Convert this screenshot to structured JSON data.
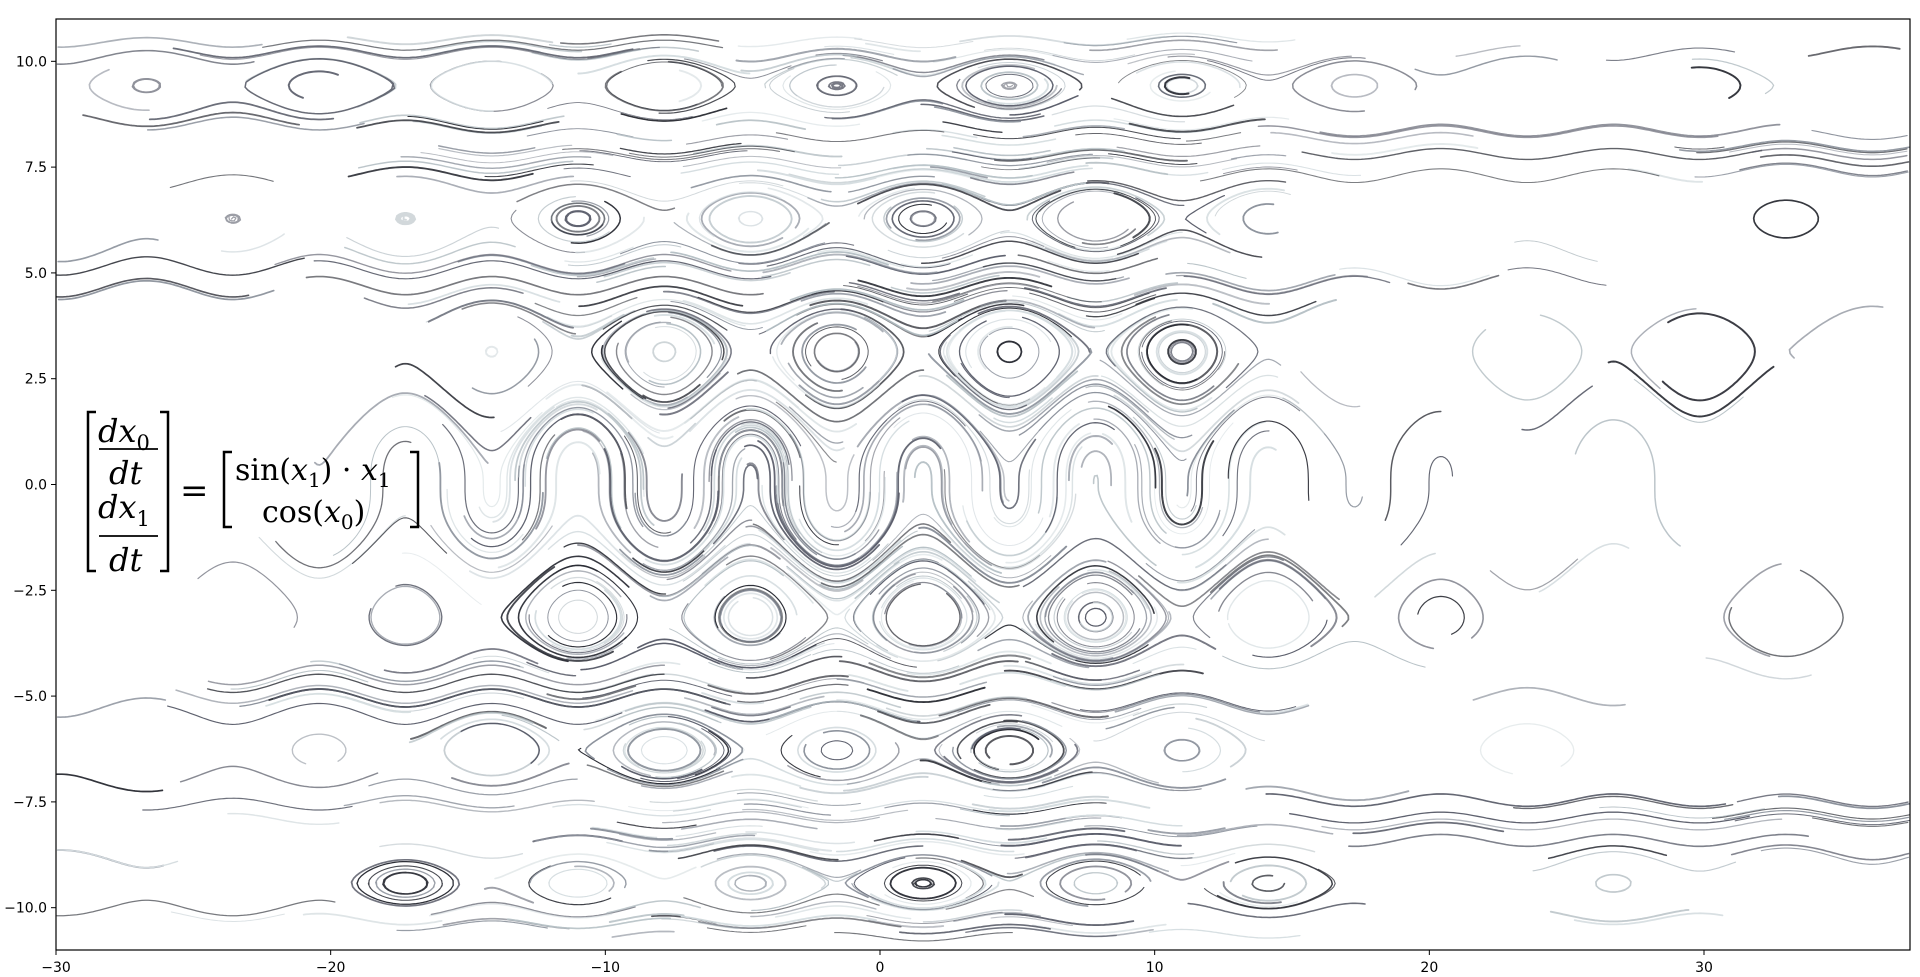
{
  "chart_data": {
    "type": "line",
    "subtype": "phase-portrait-streamlines",
    "title": "",
    "xlabel": "",
    "ylabel": "",
    "xlim": [
      -30,
      37.5
    ],
    "ylim": [
      -11.0,
      11.0
    ],
    "x_ticks": [
      -30,
      -20,
      -10,
      0,
      10,
      20,
      30
    ],
    "y_ticks": [
      10.0,
      7.5,
      5.0,
      2.5,
      0.0,
      -2.5,
      -5.0,
      -7.5,
      -10.0
    ],
    "x_tick_labels": [
      "−30",
      "−20",
      "−10",
      "0",
      "10",
      "20",
      "30"
    ],
    "y_tick_labels": [
      "10.0",
      "7.5",
      "5.0",
      "2.5",
      "0.0",
      "−2.5",
      "−5.0",
      "−7.5",
      "−10.0"
    ],
    "grid": false,
    "line_colors": [
      "#2b2d35",
      "#5a5d6a",
      "#8c929c",
      "#b7c1c6",
      "#d5dde0"
    ],
    "system": {
      "dx0": "sin(x1) · x1",
      "dx1": "cos(x0)",
      "lhs_top_num": "dx",
      "lhs_top_sub": "0",
      "lhs_bot_num": "dx",
      "lhs_bot_sub": "1",
      "den": "dt",
      "eq": "=",
      "rhs_top_a": "sin(",
      "rhs_top_var": "x",
      "rhs_top_sub": "1",
      "rhs_top_b": ") · ",
      "rhs_top_var2": "x",
      "rhs_top_sub2": "1",
      "rhs_bot_a": "cos(",
      "rhs_bot_var": "x",
      "rhs_bot_sub": "0",
      "rhs_bot_b": ")"
    }
  }
}
